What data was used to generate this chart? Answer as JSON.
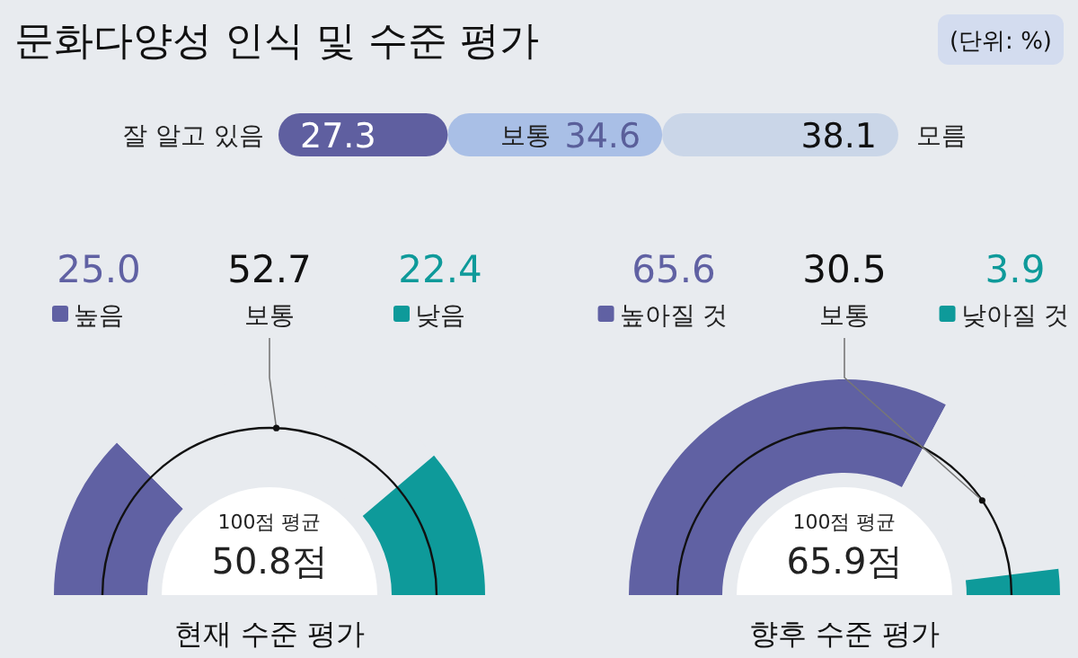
{
  "chart_data": [
    {
      "type": "bar",
      "title": "문화다양성 인식 및 수준 평가",
      "annotations": [
        "(단위: %)"
      ],
      "orientation": "horizontal",
      "stacked": true,
      "categories": [
        null
      ],
      "data_labels": true,
      "legend": false,
      "series": [
        {
          "name": "잘 알고 있음",
          "color": "#5f5fa0",
          "values": [
            27.3
          ]
        },
        {
          "name": "보통",
          "color": "#a9bfe6",
          "values": [
            34.6
          ]
        },
        {
          "name": "모름",
          "color": "#cad6e8",
          "values": [
            38.1
          ]
        }
      ]
    },
    {
      "type": "donut",
      "title": "현재 수준 평가",
      "categories": [
        "높음",
        "보통",
        "낮음"
      ],
      "values": [
        25.0,
        52.7,
        22.4
      ],
      "value_labels": [
        "25.0",
        "52.7",
        "22.4"
      ],
      "legend": "top",
      "colors": [
        "#6061a3",
        "#e8ebef",
        "#0e9a9a"
      ],
      "annotations": [
        "100점 평균",
        "50.8점"
      ]
    },
    {
      "type": "donut",
      "title": "향후 수준 평가",
      "categories": [
        "높아질 것",
        "보통",
        "낮아질 것"
      ],
      "values": [
        65.6,
        30.5,
        3.9
      ],
      "value_labels": [
        "65.6",
        "30.5",
        "3.9"
      ],
      "legend": "top",
      "colors": [
        "#6061a3",
        "#e8ebef",
        "#0e9a9a"
      ],
      "annotations": [
        "100점 평균",
        "65.9점"
      ]
    }
  ]
}
